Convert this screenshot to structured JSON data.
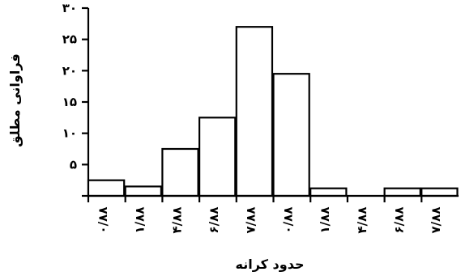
{
  "chart_data": {
    "type": "bar",
    "xlabel": "حدود کرانه",
    "ylabel": "فراوانی مطلق",
    "ylim": [
      0,
      30
    ],
    "yticks": [
      "",
      "۵",
      "۱۰",
      "۱۵",
      "۲۰",
      "۲۵",
      "۳۰"
    ],
    "categories": [
      "۰/۸۸",
      "۱/۸۸",
      "۴/۸۸",
      "۶/۸۸",
      "۷/۸۸",
      "۰/۸۸",
      "۱/۸۸",
      "۴/۸۸",
      "۶/۸۸",
      "۷/۸۸"
    ],
    "values": [
      2.5,
      1.5,
      7.5,
      12.5,
      27,
      19.5,
      1.2,
      0,
      1.2,
      1.2
    ],
    "grid": false
  }
}
